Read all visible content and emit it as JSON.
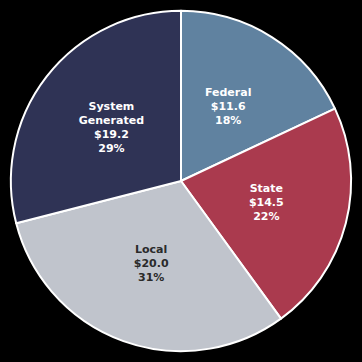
{
  "chart_data": {
    "type": "pie",
    "categories": [
      "Federal",
      "State",
      "Local",
      "System\nGenerated"
    ],
    "values": [
      18,
      22,
      31,
      29
    ],
    "value_labels": [
      "18%",
      "22%",
      "31%",
      "29%"
    ],
    "amount_labels": [
      "$11.6",
      "$14.5",
      "$20.0",
      "$19.2"
    ],
    "colors": [
      "#6082a0",
      "#aa3a4e",
      "#c0c4cc",
      "#2f3355"
    ],
    "data_labels": true
  }
}
